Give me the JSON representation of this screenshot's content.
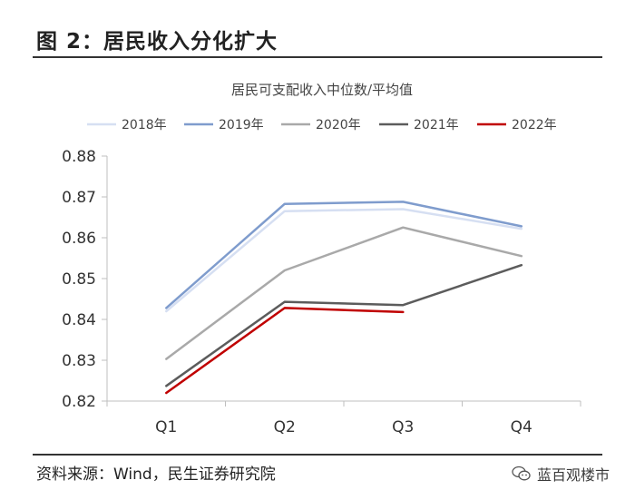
{
  "figure": {
    "title": "图 2：居民收入分化扩大",
    "source": "资料来源：Wind，民生证券研究院",
    "watermark": "蓝百观楼市"
  },
  "chart_data": {
    "type": "line",
    "title": "居民可支配收入中位数/平均值",
    "xlabel": "",
    "ylabel": "",
    "categories": [
      "Q1",
      "Q2",
      "Q3",
      "Q4"
    ],
    "ylim": [
      0.82,
      0.88
    ],
    "yticks": [
      "0.82",
      "0.83",
      "0.84",
      "0.85",
      "0.86",
      "0.87",
      "0.88"
    ],
    "legend_position": "top",
    "grid": false,
    "series": [
      {
        "name": "2018年",
        "color": "#d6dff2",
        "values": [
          0.842,
          0.8665,
          0.867,
          0.8622
        ]
      },
      {
        "name": "2019年",
        "color": "#7f9ccd",
        "values": [
          0.8428,
          0.8683,
          0.8688,
          0.8628
        ]
      },
      {
        "name": "2020年",
        "color": "#a9a9a9",
        "values": [
          0.8303,
          0.852,
          0.8625,
          0.8555
        ]
      },
      {
        "name": "2021年",
        "color": "#5c5c5c",
        "values": [
          0.8237,
          0.8443,
          0.8435,
          0.8533
        ]
      },
      {
        "name": "2022年",
        "color": "#c00000",
        "values": [
          0.822,
          0.8428,
          0.8418,
          null
        ]
      }
    ]
  }
}
